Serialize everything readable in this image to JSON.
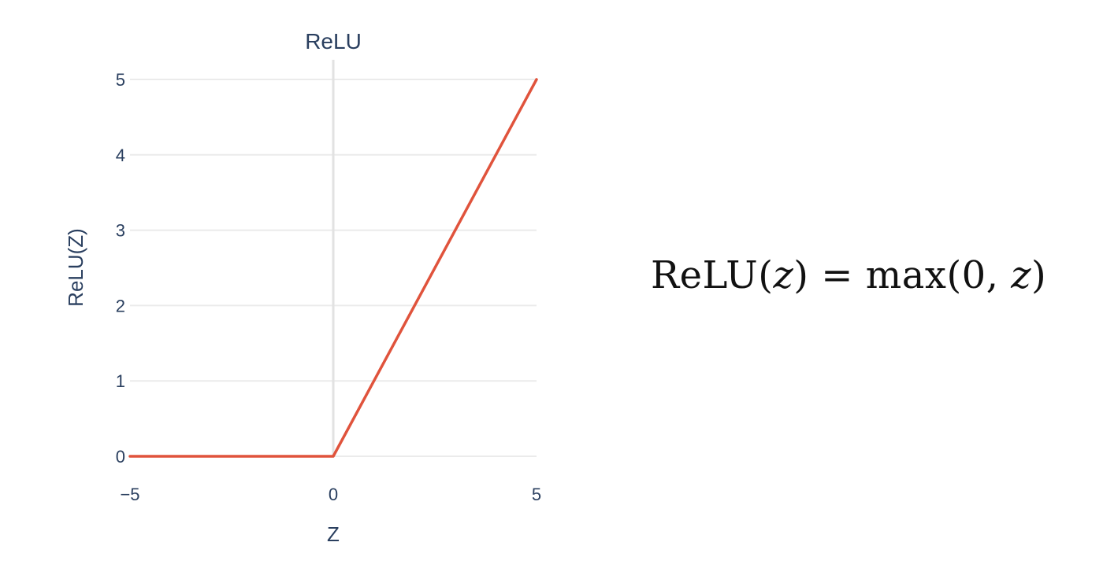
{
  "chart_data": {
    "type": "line",
    "title": "ReLU",
    "xlabel": "Z",
    "ylabel": "ReLU(Z)",
    "xlim": [
      -5,
      5
    ],
    "ylim": [
      0,
      5
    ],
    "x_ticks": [
      -5,
      0,
      5
    ],
    "x_tick_labels": [
      "−5",
      "0",
      "5"
    ],
    "y_ticks": [
      0,
      1,
      2,
      3,
      4,
      5
    ],
    "y_tick_labels": [
      "0",
      "1",
      "2",
      "3",
      "4",
      "5"
    ],
    "grid": true,
    "series": [
      {
        "x": [
          -5,
          0,
          5
        ],
        "y": [
          0,
          0,
          5
        ],
        "color": "#e0533c"
      }
    ]
  },
  "formula": {
    "lhs_func": "ReLU",
    "lhs_open": "(",
    "lhs_var": "z",
    "lhs_close": ")",
    "equals": " = ",
    "rhs_func": "max",
    "rhs_open": "(0, ",
    "rhs_var": "z",
    "rhs_close": ")"
  },
  "colors": {
    "grid": "#ebebeb",
    "zero_line": "#e2e2e2",
    "text": "#2a3f5f"
  }
}
